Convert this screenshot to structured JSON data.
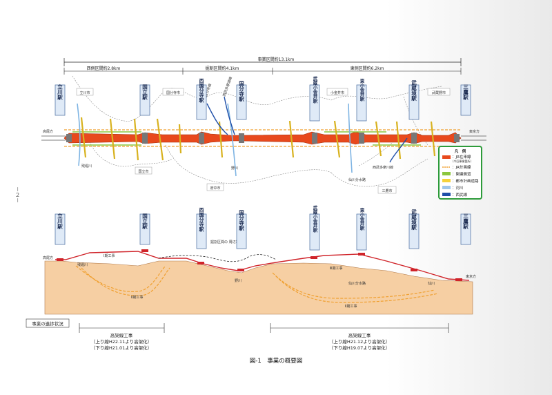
{
  "page_number": "－２－",
  "total": {
    "label": "事業区間約13.1km"
  },
  "sections": [
    {
      "label": "西側区間約2.8km"
    },
    {
      "label": "掘割区間約4.1km"
    },
    {
      "label": "東側区間約6.2km"
    }
  ],
  "stations_top": [
    {
      "name": "立川駅"
    },
    {
      "name": "国立駅"
    },
    {
      "name": "西国分寺駅"
    },
    {
      "name": "国分寺駅"
    },
    {
      "name": "武蔵小金井駅"
    },
    {
      "name": "東小金井駅"
    },
    {
      "name": "武蔵境駅"
    },
    {
      "name": "三鷹駅"
    }
  ],
  "cities_top": {
    "tachikawa": "立川市",
    "kokubunji": "国分寺市",
    "koganei": "小金井市",
    "musashino": "武蔵野市",
    "kunitachi": "国立市",
    "fuchu": "府中市",
    "mitaka": "三鷹市"
  },
  "directions": {
    "west": "高尾方",
    "east": "東京方"
  },
  "plan_labels": {
    "river1": "残堀川",
    "river2": "野川",
    "river3": "仙川分水路",
    "seibu": "西武多摩川線",
    "line_kokubunji": "西武国分寺線",
    "line_tamako": "西武多摩湖線"
  },
  "legend": {
    "title": "凡　例",
    "items": [
      {
        "label": "：JR在来線",
        "sub": "(今回事業箇所)",
        "color": "#e8491d"
      },
      {
        "label": "：JR計画線",
        "sub": "",
        "color": "#f0a030"
      },
      {
        "label": "：関連側道",
        "sub": "",
        "color": "#8cc63f"
      },
      {
        "label": "：都市計画道路",
        "sub": "",
        "color": "#f5d23c"
      },
      {
        "label": "：河川",
        "sub": "",
        "color": "#9fc6ea"
      },
      {
        "label": "：西武線",
        "sub": "",
        "color": "#1f4fa8"
      }
    ]
  },
  "profile_labels": {
    "west": "高尾方",
    "east": "東京方",
    "dig_note": "掘割区間の\n周辺地盤面",
    "river_nogawa": "野川",
    "river_sengawa": "仙川分水路",
    "river_sen": "仙川",
    "river_zanbori": "残堀川",
    "work1": "Ⅰ期工事",
    "work2": "Ⅱ期工事",
    "work3": "Ⅲ期工事",
    "work4": "Ⅱ期工事"
  },
  "stations_bottom": [
    {
      "name": "立川駅"
    },
    {
      "name": "国立駅"
    },
    {
      "name": "西国分寺駅"
    },
    {
      "name": "国分寺駅"
    },
    {
      "name": "武蔵小金井駅"
    },
    {
      "name": "東小金井駅"
    },
    {
      "name": "武蔵境駅"
    },
    {
      "name": "三鷹駅"
    }
  ],
  "progress": {
    "label": "事業の進捗状況",
    "west": {
      "title": "高架線工事",
      "line1": "（上り線H22.11より高架化）",
      "line2": "（下り線H21.01より高架化）"
    },
    "east": {
      "title": "高架線工事",
      "line1": "（上り線H21.12より高架化）",
      "line2": "（下り線H19.07より高架化）"
    }
  },
  "caption": "図-1　事業の概要図"
}
